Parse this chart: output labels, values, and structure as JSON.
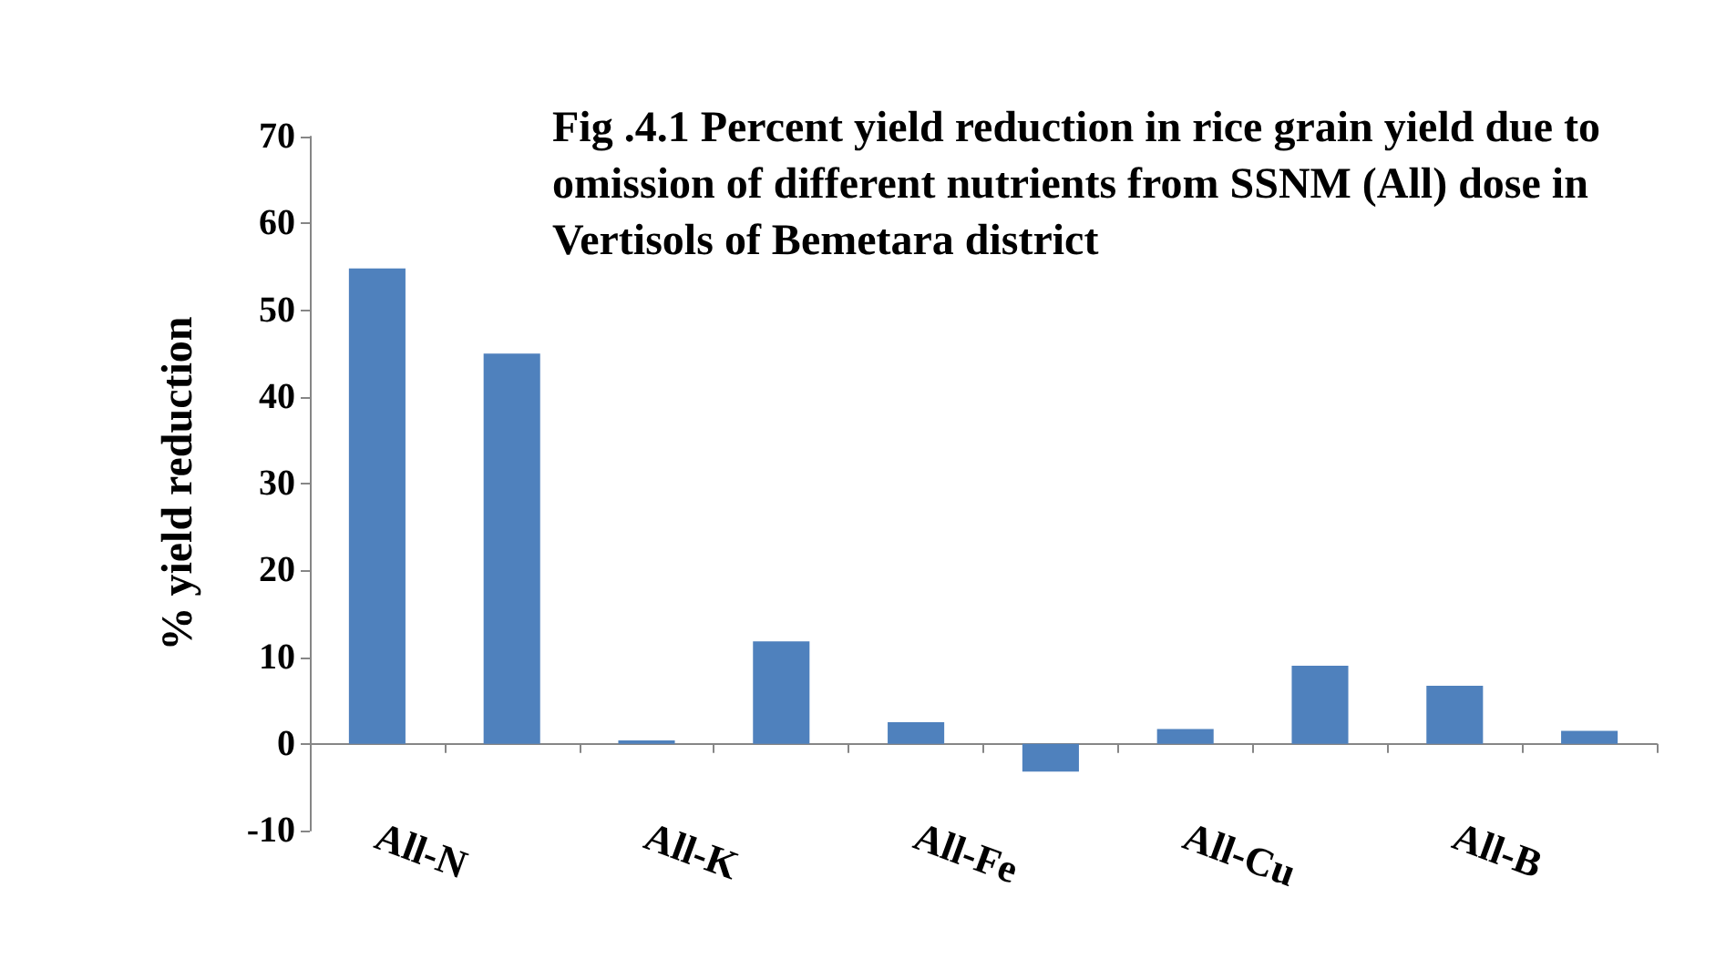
{
  "chart_data": {
    "type": "bar",
    "title": "Fig .4.1 Percent yield reduction in rice grain yield due to omission of different nutrients from SSNM (All) dose in Vertisols of Bemetara district",
    "ylabel": "% yield reduction",
    "categories": [
      "All-N",
      null,
      "All-K",
      null,
      "All-Fe",
      null,
      "All-Cu",
      null,
      "All-B",
      null
    ],
    "values": [
      54.8,
      45,
      0.4,
      11.8,
      2.5,
      -3.2,
      1.7,
      9,
      6.7,
      1.5
    ],
    "color": "#4f81bd",
    "ylim": [
      -10,
      70
    ],
    "yticks": [
      -10,
      0,
      10,
      20,
      30,
      40,
      50,
      60,
      70
    ]
  }
}
